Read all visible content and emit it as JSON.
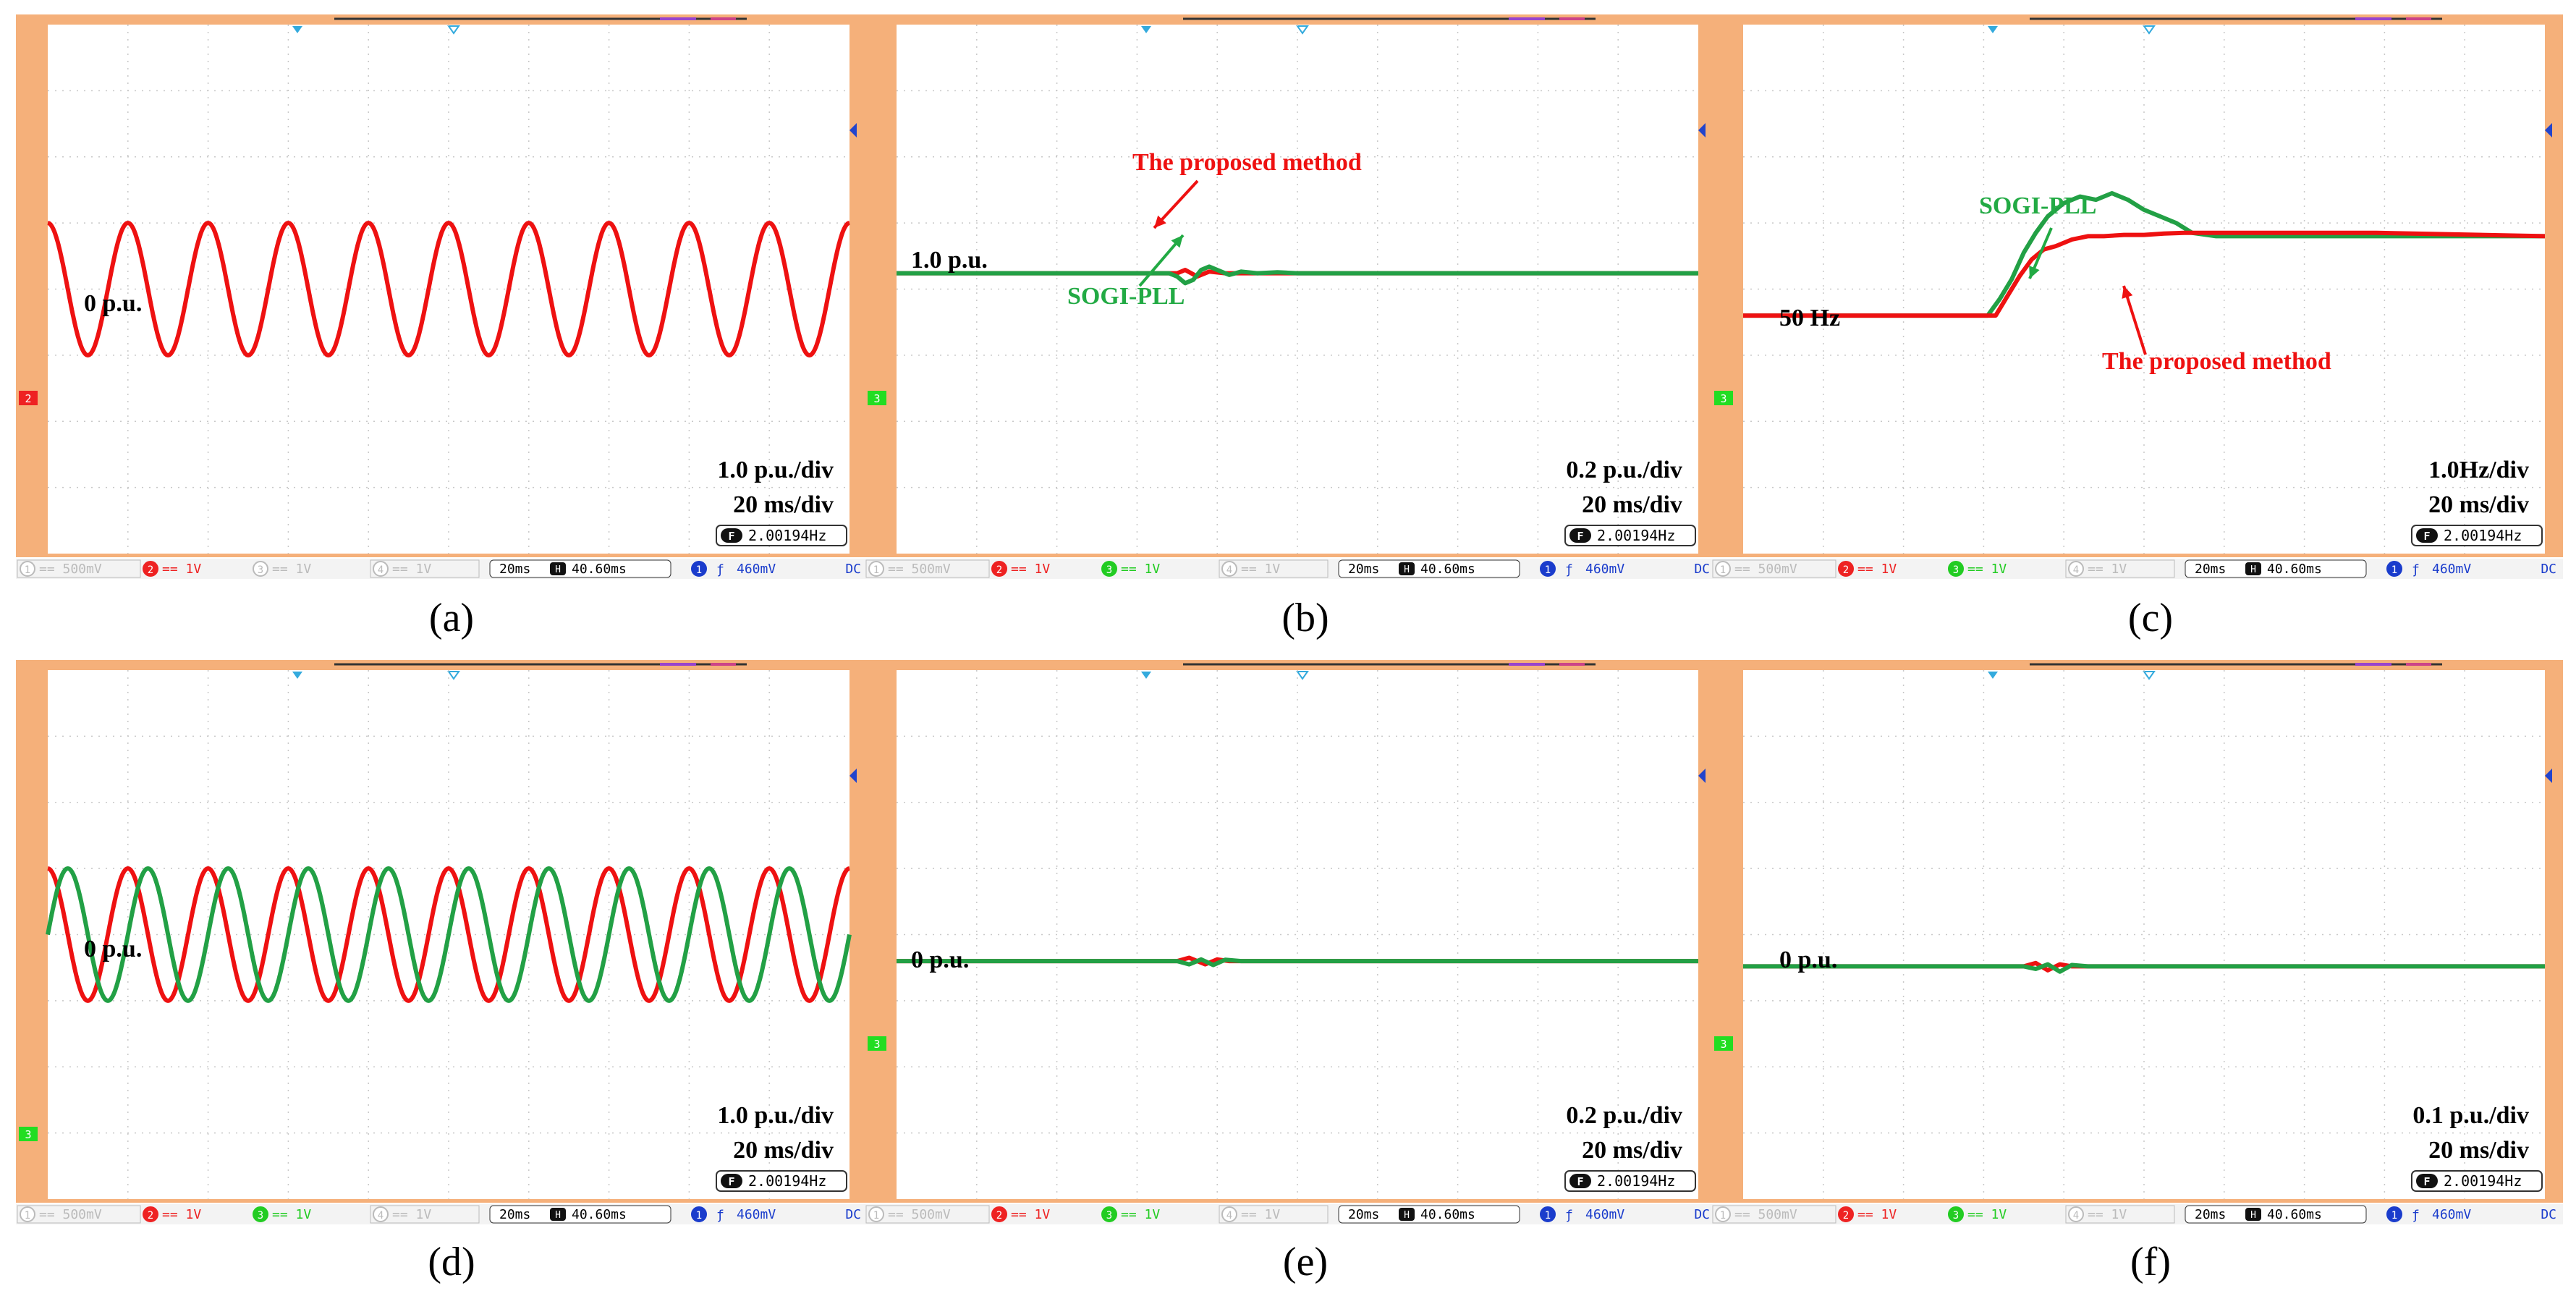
{
  "panels": [
    {
      "id": "a",
      "caption": "(a)",
      "level_label": "0 p.u.",
      "scale_label": "1.0 p.u./div",
      "time_label": "20 ms/div",
      "freq_readout": "2.00194Hz",
      "ch_marker": "2",
      "ch_marker_color": "#ee2222",
      "status": {
        "ch1": "500mV",
        "ch2": "1V",
        "ch3": "1V",
        "ch4": "1V",
        "ch3_active": false,
        "time": "20ms",
        "delay": "40.60ms",
        "trig": "460mV",
        "coupling": "DC"
      }
    },
    {
      "id": "b",
      "caption": "(b)",
      "level_label": "1.0 p.u.",
      "scale_label": "0.2 p.u./div",
      "time_label": "20 ms/div",
      "freq_readout": "2.00194Hz",
      "ch_marker": "3",
      "ch_marker_color": "#22dd22",
      "annotations": [
        {
          "text": "The proposed method",
          "color": "#ee1111"
        },
        {
          "text": "SOGI-PLL",
          "color": "#22aa44"
        }
      ],
      "status": {
        "ch1": "500mV",
        "ch2": "1V",
        "ch3": "1V",
        "ch4": "1V",
        "ch3_active": true,
        "time": "20ms",
        "delay": "40.60ms",
        "trig": "460mV",
        "coupling": "DC"
      }
    },
    {
      "id": "c",
      "caption": "(c)",
      "level_label": "50 Hz",
      "scale_label": "1.0Hz/div",
      "time_label": "20 ms/div",
      "freq_readout": "2.00194Hz",
      "ch_marker": "3",
      "ch_marker_color": "#22dd22",
      "annotations": [
        {
          "text": "SOGI-PLL",
          "color": "#22aa44"
        },
        {
          "text": "The proposed method",
          "color": "#ee1111"
        }
      ],
      "status": {
        "ch1": "500mV",
        "ch2": "1V",
        "ch3": "1V",
        "ch4": "1V",
        "ch3_active": true,
        "time": "20ms",
        "delay": "40.60ms",
        "trig": "460mV",
        "coupling": "DC"
      }
    },
    {
      "id": "d",
      "caption": "(d)",
      "level_label": "0 p.u.",
      "scale_label": "1.0 p.u./div",
      "time_label": "20 ms/div",
      "freq_readout": "2.00194Hz",
      "ch_marker": "3",
      "ch_marker_color": "#22dd22",
      "status": {
        "ch1": "500mV",
        "ch2": "1V",
        "ch3": "1V",
        "ch4": "1V",
        "ch3_active": true,
        "time": "20ms",
        "delay": "40.60ms",
        "trig": "460mV",
        "coupling": "DC"
      }
    },
    {
      "id": "e",
      "caption": "(e)",
      "level_label": "0 p.u.",
      "scale_label": "0.2 p.u./div",
      "time_label": "20 ms/div",
      "freq_readout": "2.00194Hz",
      "ch_marker": "3",
      "ch_marker_color": "#22dd22",
      "status": {
        "ch1": "500mV",
        "ch2": "1V",
        "ch3": "1V",
        "ch4": "1V",
        "ch3_active": true,
        "time": "20ms",
        "delay": "40.60ms",
        "trig": "460mV",
        "coupling": "DC"
      }
    },
    {
      "id": "f",
      "caption": "(f)",
      "level_label": "0 p.u.",
      "scale_label": "0.1 p.u./div",
      "time_label": "20 ms/div",
      "freq_readout": "2.00194Hz",
      "ch_marker": "3",
      "ch_marker_color": "#22dd22",
      "status": {
        "ch1": "500mV",
        "ch2": "1V",
        "ch3": "1V",
        "ch4": "1V",
        "ch3_active": true,
        "time": "20ms",
        "delay": "40.60ms",
        "trig": "460mV",
        "coupling": "DC"
      }
    }
  ],
  "colors": {
    "frame": "#f5b07a",
    "grid": "#c8c8c8",
    "proposed": "#ee1111",
    "sogi": "#22a045",
    "status_blue": "#1a3ccc"
  },
  "chart_data": [
    {
      "type": "line",
      "panel": "a",
      "xlim": [
        0,
        200
      ],
      "ylim": [
        -4,
        4
      ],
      "series": [
        {
          "name": "",
          "color": "#ee1111",
          "kind": "sine",
          "amplitude": 1.0,
          "offset": 0,
          "cycles": 10,
          "phase": 1.5708
        }
      ]
    },
    {
      "type": "line",
      "panel": "b",
      "xlim": [
        0,
        200
      ],
      "ylim": [
        -0.8,
        0.8
      ],
      "series": [
        {
          "name": "The proposed method",
          "color": "#ee1111",
          "x": [
            0,
            70,
            72,
            75,
            78,
            82,
            88,
            95,
            200
          ],
          "y": [
            0,
            0,
            0.01,
            -0.01,
            0.005,
            0,
            0,
            0,
            0
          ]
        },
        {
          "name": "SOGI-PLL",
          "color": "#22a045",
          "x": [
            0,
            68,
            70,
            72,
            74,
            76,
            78,
            80,
            83,
            86,
            90,
            95,
            100,
            105,
            200
          ],
          "y": [
            0,
            0,
            -0.01,
            -0.03,
            -0.02,
            0.01,
            0.02,
            0.01,
            -0.005,
            0.005,
            0,
            0.003,
            0,
            0,
            0
          ]
        }
      ]
    },
    {
      "type": "line",
      "panel": "c",
      "xlim": [
        0,
        200
      ],
      "ylim": [
        -4,
        4
      ],
      "series": [
        {
          "name": "SOGI-PLL",
          "color": "#22a045",
          "x": [
            0,
            61,
            64,
            67,
            70,
            73,
            76,
            80,
            84,
            88,
            92,
            96,
            100,
            104,
            108,
            112,
            118,
            200
          ],
          "y": [
            0,
            0,
            0.25,
            0.55,
            0.95,
            1.25,
            1.5,
            1.7,
            1.8,
            1.75,
            1.85,
            1.75,
            1.6,
            1.5,
            1.4,
            1.25,
            1.2,
            1.2
          ]
        },
        {
          "name": "The proposed method",
          "color": "#ee1111",
          "x": [
            0,
            63,
            66,
            69,
            72,
            75,
            78,
            82,
            86,
            90,
            95,
            100,
            105,
            110,
            120,
            158,
            200
          ],
          "y": [
            0,
            0,
            0.3,
            0.6,
            0.85,
            1.0,
            1.05,
            1.15,
            1.2,
            1.2,
            1.22,
            1.22,
            1.24,
            1.25,
            1.25,
            1.25,
            1.2
          ]
        }
      ]
    },
    {
      "type": "line",
      "panel": "d",
      "xlim": [
        0,
        200
      ],
      "ylim": [
        -4,
        4
      ],
      "series": [
        {
          "name": "",
          "color": "#ee1111",
          "kind": "sine",
          "amplitude": 1.0,
          "offset": 0,
          "cycles": 10,
          "phase": 1.5708
        },
        {
          "name": "",
          "color": "#22a045",
          "kind": "sine",
          "amplitude": 1.0,
          "offset": 0,
          "cycles": 10,
          "phase": 0
        }
      ]
    },
    {
      "type": "line",
      "panel": "e",
      "xlim": [
        0,
        200
      ],
      "ylim": [
        -0.8,
        0.8
      ],
      "series": [
        {
          "name": "",
          "color": "#ee1111",
          "x": [
            0,
            70,
            73,
            77,
            80,
            83,
            200
          ],
          "y": [
            0,
            0,
            0.01,
            -0.01,
            0.005,
            0,
            0
          ]
        },
        {
          "name": "",
          "color": "#22a045",
          "x": [
            0,
            70,
            73,
            76,
            79,
            82,
            86,
            90,
            200
          ],
          "y": [
            0,
            0,
            -0.01,
            0.005,
            -0.012,
            0.004,
            0,
            0,
            0
          ]
        }
      ]
    },
    {
      "type": "line",
      "panel": "f",
      "xlim": [
        0,
        200
      ],
      "ylim": [
        -0.4,
        0.4
      ],
      "series": [
        {
          "name": "",
          "color": "#ee1111",
          "x": [
            0,
            70,
            73,
            76,
            79,
            82,
            200
          ],
          "y": [
            0,
            0,
            0.005,
            -0.006,
            0.003,
            0,
            0
          ]
        },
        {
          "name": "",
          "color": "#22a045",
          "x": [
            0,
            70,
            73,
            76,
            79,
            82,
            86,
            200
          ],
          "y": [
            0,
            0,
            -0.004,
            0.003,
            -0.008,
            0.002,
            0,
            0
          ]
        }
      ]
    }
  ]
}
